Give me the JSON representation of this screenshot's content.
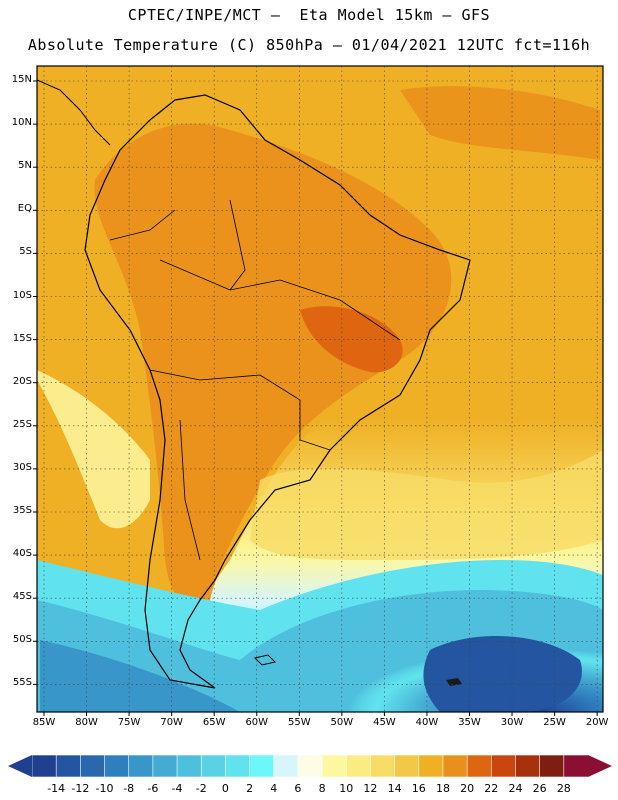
{
  "header": {
    "line1": "CPTEC/INPE/MCT –  Eta Model 15km – GFS",
    "line2": "Absolute Temperature (C) 850hPa – 01/04/2021 12UTC fct=116h"
  },
  "axes": {
    "lat_labels": [
      "15N",
      "10N",
      "5N",
      "EQ",
      "5S",
      "10S",
      "15S",
      "20S",
      "25S",
      "30S",
      "35S",
      "40S",
      "45S",
      "50S",
      "55S"
    ],
    "lon_labels": [
      "85W",
      "80W",
      "75W",
      "70W",
      "65W",
      "60W",
      "55W",
      "50W",
      "45W",
      "40W",
      "35W",
      "30W",
      "25W",
      "20W"
    ]
  },
  "colorbar": {
    "labels": [
      "-14",
      "-12",
      "-10",
      "-8",
      "-6",
      "-4",
      "-2",
      "0",
      "2",
      "4",
      "6",
      "8",
      "10",
      "12",
      "14",
      "16",
      "18",
      "20",
      "22",
      "24",
      "26",
      "28"
    ],
    "colors": [
      "#1f3f8f",
      "#2455a0",
      "#2a68ae",
      "#2f7fbf",
      "#3896c9",
      "#45abd3",
      "#4fbfde",
      "#5ad2e6",
      "#60e3ee",
      "#6ef7f8",
      "#d6f6fb",
      "#fefce6",
      "#fdf8a0",
      "#fbeb83",
      "#f8dc66",
      "#f3c747",
      "#efb025",
      "#e98f1b",
      "#de6611",
      "#c9460d",
      "#a7300d",
      "#7d1e10",
      "#8a0f33"
    ]
  }
}
